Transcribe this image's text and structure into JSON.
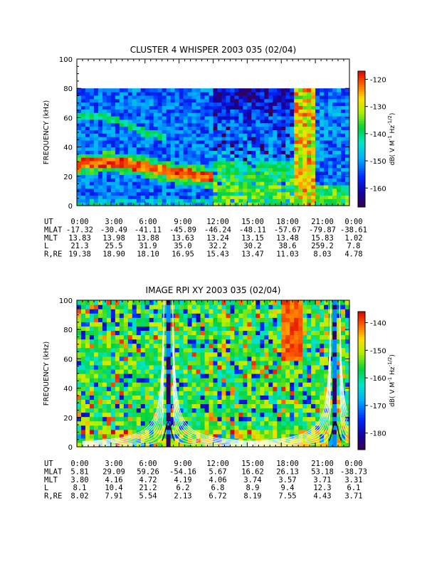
{
  "chart_data": [
    {
      "type": "heatmap",
      "title": "CLUSTER 4 WHISPER 2003 035 (02/04)",
      "ylabel": "FREQUENCY (kHz)",
      "ylim": [
        0,
        100
      ],
      "yticks": [
        "0",
        "20",
        "40",
        "60",
        "80",
        "100"
      ],
      "xlim_hours": [
        0,
        24
      ],
      "data_ceiling_khz": 80,
      "colorbar": {
        "label": "dB( V M^-1 Hz^-1/2)",
        "label_base": "dB( V M",
        "label_exp1": "-1",
        "label_mid": " Hz",
        "label_exp2": "-1/2",
        "label_end": ")",
        "range": [
          -167,
          -117
        ],
        "ticks": [
          "-120",
          "-130",
          "-140",
          "-150",
          "-160"
        ]
      },
      "features": [
        {
          "name": "lower band",
          "t": [
            0,
            3,
            6,
            7.5,
            9,
            10.5,
            12
          ],
          "f": [
            28,
            30,
            27,
            24,
            22,
            21,
            19
          ]
        },
        {
          "name": "upper band",
          "t": [
            0,
            3,
            6,
            8
          ],
          "f": [
            62,
            60,
            50,
            47
          ]
        }
      ],
      "ephemeris": {
        "labels": [
          "UT",
          "MLAT",
          "MLT",
          "L",
          "R,RE"
        ],
        "columns": [
          [
            "0:00",
            "-17.32",
            "13.83",
            "21.3",
            "19.38"
          ],
          [
            "3:00",
            "-30.49",
            "13.98",
            "25.5",
            "18.90"
          ],
          [
            "6:00",
            "-41.11",
            "13.88",
            "31.9",
            "18.10"
          ],
          [
            "9:00",
            "-45.89",
            "13.63",
            "35.0",
            "16.95"
          ],
          [
            "12:00",
            "-46.24",
            "13.24",
            "32.2",
            "15.43"
          ],
          [
            "15:00",
            "-48.11",
            "13.15",
            "30.2",
            "13.47"
          ],
          [
            "18:00",
            "-57.67",
            "13.48",
            "38.6",
            "11.03"
          ],
          [
            "21:00",
            "-79.87",
            "15.83",
            "259.2",
            "8.03"
          ],
          [
            "0:00",
            "-38.61",
            "1.02",
            "7.8",
            "4.78"
          ]
        ]
      }
    },
    {
      "type": "heatmap",
      "title": "IMAGE RPI XY 2003 035 (02/04)",
      "ylabel": "FREQUENCY (kHz)",
      "ylim": [
        0,
        100
      ],
      "yticks": [
        "0",
        "20",
        "40",
        "60",
        "80",
        "100"
      ],
      "xlim_hours": [
        0,
        24
      ],
      "colorbar": {
        "label": "dB( V M^-1 Hz^-1/2)",
        "label_base": "dB( V M",
        "label_exp1": "-1",
        "label_mid": " Hz",
        "label_exp2": "-1/2",
        "label_end": ")",
        "range": [
          -186,
          -136
        ],
        "ticks": [
          "-140",
          "-150",
          "-160",
          "-170",
          "-180"
        ]
      },
      "perigee_passes_hours": [
        7.8,
        8.3,
        22.5,
        23.0
      ],
      "ephemeris": {
        "labels": [
          "UT",
          "MLAT",
          "MLT",
          "L",
          "R,RE"
        ],
        "columns": [
          [
            "0:00",
            "5.81",
            "3.80",
            "8.1",
            "8.02"
          ],
          [
            "3:00",
            "29.09",
            "4.16",
            "10.4",
            "7.91"
          ],
          [
            "6:00",
            "59.26",
            "4.72",
            "21.2",
            "5.54"
          ],
          [
            "9:00",
            "-54.16",
            "4.19",
            "6.2",
            "2.13"
          ],
          [
            "12:00",
            "5.67",
            "4.06",
            "6.8",
            "6.72"
          ],
          [
            "15:00",
            "16.62",
            "3.74",
            "8.9",
            "8.19"
          ],
          [
            "18:00",
            "26.13",
            "3.57",
            "9.4",
            "7.55"
          ],
          [
            "21:00",
            "53.18",
            "3.71",
            "12.3",
            "4.43"
          ],
          [
            "0:00",
            "-38.73",
            "3.31",
            "6.1",
            "3.71"
          ]
        ]
      }
    }
  ]
}
